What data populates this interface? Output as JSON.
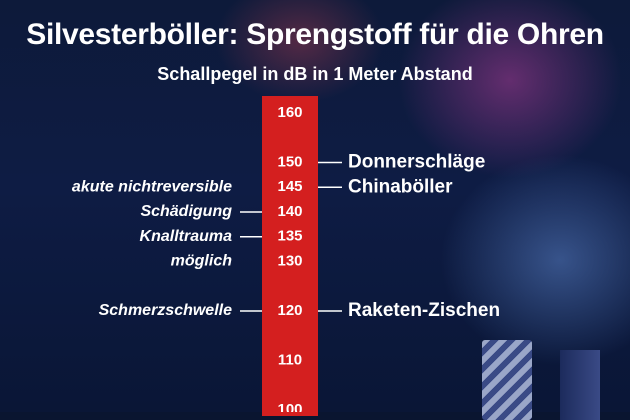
{
  "header": {
    "title": "Silvesterböller: Sprengstoff für die Ohren",
    "subtitle": "Schallpegel in dB in 1 Meter Abstand"
  },
  "colors": {
    "scale_bar": "#d41f1f",
    "text": "#ffffff",
    "background": "#0d1a3a"
  },
  "chart_data": {
    "type": "table",
    "title": "Silvesterböller: Sprengstoff für die Ohren",
    "subtitle": "Schallpegel in dB in 1 Meter Abstand",
    "ticks": [
      160,
      150,
      145,
      140,
      135,
      130,
      120,
      110,
      100
    ],
    "right_annotations": [
      {
        "value": 150,
        "label": "Donnerschläge"
      },
      {
        "value": 145,
        "label": "Chinaböller"
      },
      {
        "value": 120,
        "label": "Raketen-Zischen"
      }
    ],
    "left_annotations": [
      {
        "value": 145,
        "label": "akute nichtreversible",
        "connector": false
      },
      {
        "value": 140,
        "label": "Schädigung",
        "connector": true
      },
      {
        "value": 135,
        "label": "Knalltrauma",
        "connector": true
      },
      {
        "value": 130,
        "label": "möglich",
        "connector": false
      },
      {
        "value": 120,
        "label": "Schmerzschwelle",
        "connector": true
      }
    ]
  }
}
